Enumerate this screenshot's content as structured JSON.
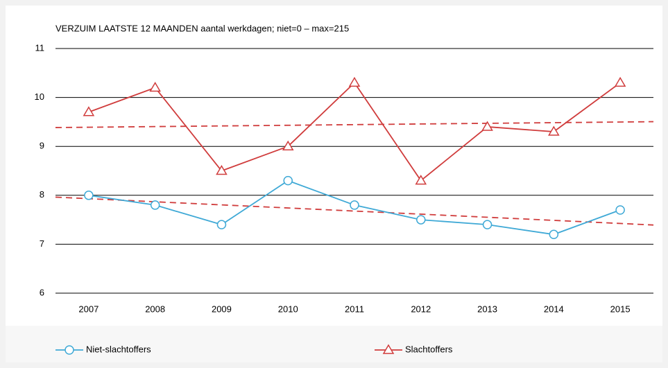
{
  "chart_data": {
    "type": "line",
    "title": "VERZUIM LAATSTE 12 MAANDEN  aantal werkdagen; niet=0 – max=215",
    "categories": [
      "2007",
      "2008",
      "2009",
      "2010",
      "2011",
      "2012",
      "2013",
      "2014",
      "2015"
    ],
    "series": [
      {
        "name": "Niet-slachtoffers",
        "color": "#3fa9d6",
        "marker": "circle",
        "trendline": true,
        "trendline_color": "#d03c3c",
        "values": [
          8.0,
          7.8,
          7.4,
          8.3,
          7.8,
          7.5,
          7.4,
          7.2,
          7.7
        ]
      },
      {
        "name": "Slachtoffers",
        "color": "#d03c3c",
        "marker": "triangle",
        "trendline": true,
        "trendline_color": "#d03c3c",
        "values": [
          9.7,
          10.2,
          8.5,
          9.0,
          10.3,
          8.3,
          9.4,
          9.3,
          10.3
        ]
      }
    ],
    "ylim": [
      6,
      11
    ],
    "yticks": [
      6,
      7,
      8,
      9,
      10,
      11
    ],
    "grid": true,
    "legend": "bottom"
  }
}
